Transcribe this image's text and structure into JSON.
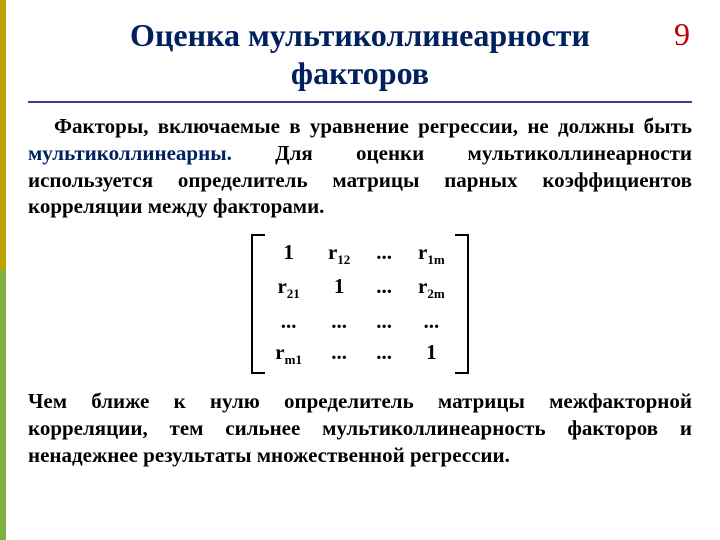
{
  "page_number": "9",
  "title_line1": "Оценка мультиколлинеарности",
  "title_line2": "факторов",
  "colors": {
    "title": "#002060",
    "page_number": "#c00000",
    "highlight": "#002060",
    "rule": "#3b3b8f",
    "stripe_top": "#bfa000",
    "stripe_bottom": "#7fb23f",
    "text": "#000000",
    "background": "#ffffff"
  },
  "para1_part1": "Факторы, включаемые в уравнение регрессии, не должны быть ",
  "para1_highlight": "мультиколлинеарны.",
  "para1_part2": " Для оценки мультиколлинеар­ности используется определитель матрицы парных коэффициентов корреляции между факторами.",
  "matrix": {
    "rows": [
      [
        {
          "t": "1"
        },
        {
          "t": "r",
          "sub": "12"
        },
        {
          "t": "..."
        },
        {
          "t": "r",
          "sub": "1m"
        }
      ],
      [
        {
          "t": "r",
          "sub": "21"
        },
        {
          "t": "1"
        },
        {
          "t": "..."
        },
        {
          "t": "r",
          "sub": "2m"
        }
      ],
      [
        {
          "t": "..."
        },
        {
          "t": "..."
        },
        {
          "t": "..."
        },
        {
          "t": "..."
        }
      ],
      [
        {
          "t": "r",
          "sub": "m1"
        },
        {
          "t": "..."
        },
        {
          "t": "..."
        },
        {
          "t": "1"
        }
      ]
    ],
    "cols": 4,
    "font_size": 21
  },
  "para2": "Чем ближе к нулю определитель матрицы межфакторной корреляции, тем сильнее мультиколлинеарность факторов и ненадежнее результаты множественной регрессии.",
  "typography": {
    "title_fontsize": 32,
    "body_fontsize": 21,
    "pagenum_fontsize": 32,
    "font_family": "Times New Roman"
  }
}
